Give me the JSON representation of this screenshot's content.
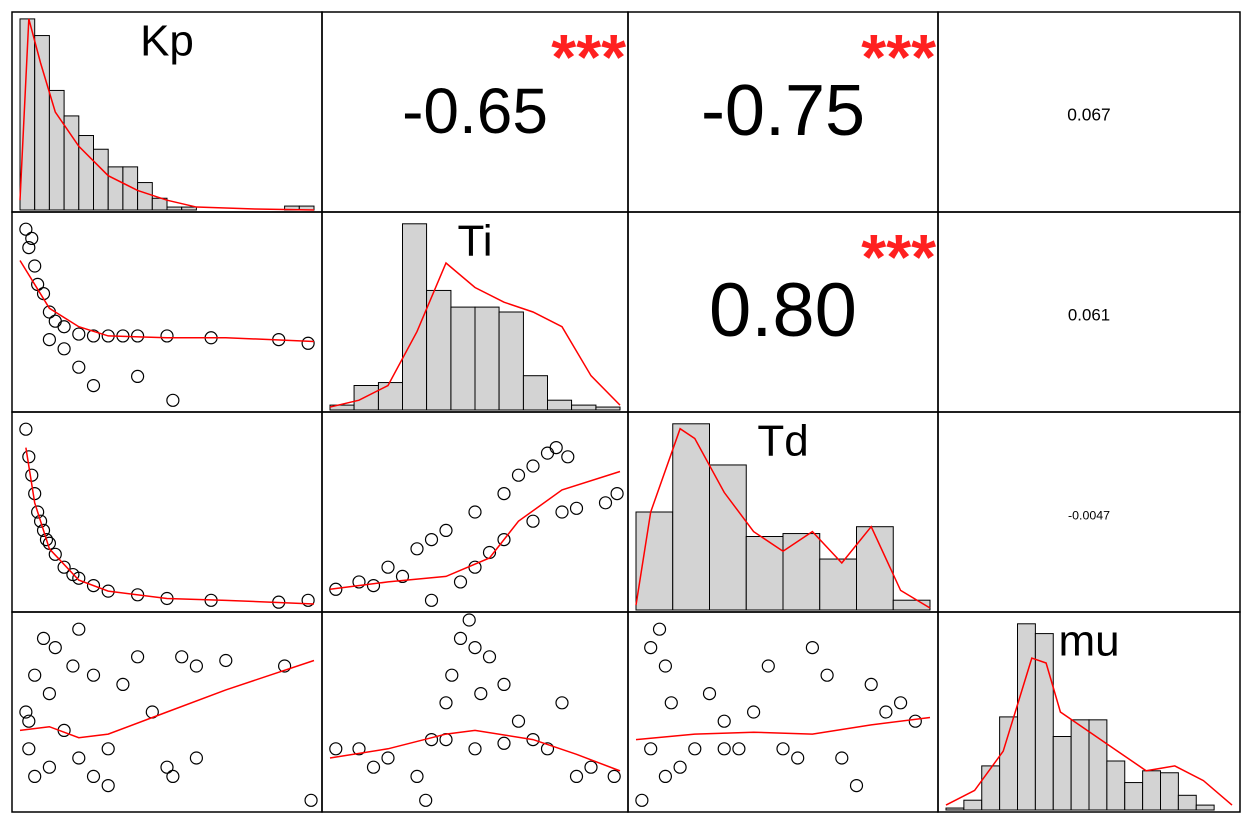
{
  "chart_data": {
    "type": "pairs",
    "variables": [
      "Kp",
      "Ti",
      "Td",
      "mu"
    ],
    "bar_color": "#d3d3d3",
    "line_color": "#ff0000",
    "star_color": "#ff2020",
    "xlim": [
      0,
      1
    ],
    "ylim": [
      0,
      1
    ],
    "hist_ylim": [
      0,
      200
    ],
    "histograms": [
      {
        "bins": [
          0,
          0.05,
          0.1,
          0.15,
          0.2,
          0.25,
          0.3,
          0.35,
          0.4,
          0.45,
          0.5,
          0.55,
          0.6,
          0.65,
          0.7,
          0.75,
          0.8,
          0.85,
          0.9,
          0.95,
          1
        ],
        "counts": [
          195,
          178,
          122,
          96,
          76,
          62,
          44,
          44,
          28,
          12,
          3,
          3,
          0,
          0,
          0,
          0,
          0,
          0,
          4,
          4
        ],
        "density": {
          "x": [
            0,
            0.03,
            0.07,
            0.12,
            0.2,
            0.3,
            0.4,
            0.5,
            0.6,
            0.8,
            1
          ],
          "y": [
            10,
            195,
            150,
            100,
            65,
            35,
            20,
            10,
            3,
            1,
            0
          ]
        }
      },
      {
        "bins": [
          0,
          0.083,
          0.167,
          0.25,
          0.333,
          0.417,
          0.5,
          0.583,
          0.667,
          0.75,
          0.833,
          0.917,
          1
        ],
        "counts": [
          5,
          25,
          28,
          190,
          122,
          105,
          105,
          100,
          35,
          10,
          5,
          3
        ],
        "density": {
          "x": [
            0,
            0.1,
            0.2,
            0.3,
            0.4,
            0.5,
            0.6,
            0.7,
            0.8,
            0.9,
            1
          ],
          "y": [
            3,
            10,
            25,
            80,
            150,
            125,
            110,
            100,
            85,
            35,
            5
          ]
        }
      },
      {
        "bins": [
          0,
          0.125,
          0.25,
          0.375,
          0.5,
          0.625,
          0.75,
          0.875,
          1
        ],
        "counts": [
          100,
          190,
          148,
          75,
          78,
          52,
          85,
          10
        ],
        "density": {
          "x": [
            0,
            0.05,
            0.15,
            0.2,
            0.3,
            0.4,
            0.5,
            0.6,
            0.7,
            0.8,
            0.9,
            1
          ],
          "y": [
            5,
            100,
            185,
            175,
            120,
            80,
            60,
            80,
            48,
            85,
            20,
            2
          ]
        }
      },
      {
        "bins": [
          0,
          0.0625,
          0.125,
          0.1875,
          0.25,
          0.3125,
          0.375,
          0.4375,
          0.5,
          0.5625,
          0.625,
          0.6875,
          0.75,
          0.8125,
          0.875,
          0.9375,
          1
        ],
        "counts": [
          2,
          10,
          45,
          95,
          190,
          180,
          75,
          92,
          92,
          50,
          28,
          40,
          38,
          15,
          5,
          0
        ],
        "density": {
          "x": [
            0,
            0.1,
            0.2,
            0.3,
            0.35,
            0.4,
            0.5,
            0.6,
            0.7,
            0.8,
            0.9,
            1
          ],
          "y": [
            5,
            20,
            60,
            155,
            150,
            100,
            80,
            60,
            40,
            45,
            30,
            5
          ]
        }
      }
    ],
    "correlations": [
      {
        "row": 0,
        "col": 1,
        "value": -0.65,
        "stars": "***"
      },
      {
        "row": 0,
        "col": 2,
        "value": -0.75,
        "stars": "***"
      },
      {
        "row": 0,
        "col": 3,
        "value": 0.067
      },
      {
        "row": 1,
        "col": 2,
        "value": 0.8,
        "value_label": "0.80",
        "stars": "***"
      },
      {
        "row": 1,
        "col": 3,
        "value": 0.061
      },
      {
        "row": 2,
        "col": 3,
        "value": -0.0047
      }
    ],
    "scatter": [
      {
        "row": 1,
        "col": 0,
        "x": [
          0.02,
          0.03,
          0.05,
          0.06,
          0.08,
          0.1,
          0.12,
          0.15,
          0.2,
          0.25,
          0.3,
          0.35,
          0.4,
          0.5,
          0.65,
          0.88,
          0.98,
          0.2,
          0.25,
          0.4,
          0.52,
          0.15,
          0.1,
          0.04
        ],
        "y": [
          0.95,
          0.85,
          0.75,
          0.65,
          0.6,
          0.5,
          0.45,
          0.42,
          0.38,
          0.37,
          0.37,
          0.37,
          0.37,
          0.37,
          0.36,
          0.35,
          0.33,
          0.2,
          0.1,
          0.15,
          0.02,
          0.3,
          0.35,
          0.9
        ],
        "fit": {
          "x": [
            0,
            0.1,
            0.2,
            0.3,
            0.5,
            0.7,
            1
          ],
          "y": [
            0.78,
            0.52,
            0.42,
            0.37,
            0.36,
            0.36,
            0.34
          ]
        }
      },
      {
        "row": 2,
        "col": 0,
        "x": [
          0.02,
          0.03,
          0.04,
          0.05,
          0.06,
          0.08,
          0.1,
          0.12,
          0.15,
          0.2,
          0.25,
          0.3,
          0.4,
          0.5,
          0.65,
          0.88,
          0.98,
          0.07,
          0.09,
          0.18
        ],
        "y": [
          0.95,
          0.8,
          0.7,
          0.6,
          0.5,
          0.4,
          0.33,
          0.27,
          0.2,
          0.14,
          0.1,
          0.07,
          0.05,
          0.03,
          0.02,
          0.01,
          0.02,
          0.45,
          0.35,
          0.16
        ],
        "fit": {
          "x": [
            0.02,
            0.05,
            0.1,
            0.2,
            0.3,
            0.5,
            0.7,
            1
          ],
          "y": [
            0.85,
            0.55,
            0.3,
            0.13,
            0.07,
            0.03,
            0.02,
            0
          ]
        }
      },
      {
        "row": 2,
        "col": 1,
        "x": [
          0.02,
          0.1,
          0.2,
          0.3,
          0.35,
          0.4,
          0.5,
          0.6,
          0.65,
          0.7,
          0.75,
          0.78,
          0.82,
          0.35,
          0.45,
          0.5,
          0.55,
          0.6,
          0.7,
          0.8,
          0.85,
          0.95,
          0.99,
          0.15,
          0.25
        ],
        "y": [
          0.08,
          0.12,
          0.2,
          0.3,
          0.35,
          0.4,
          0.5,
          0.6,
          0.7,
          0.75,
          0.82,
          0.85,
          0.8,
          0.02,
          0.12,
          0.2,
          0.28,
          0.35,
          0.45,
          0.5,
          0.52,
          0.55,
          0.6,
          0.1,
          0.15
        ],
        "fit": {
          "x": [
            0,
            0.2,
            0.4,
            0.55,
            0.65,
            0.8,
            1
          ],
          "y": [
            0.08,
            0.12,
            0.15,
            0.25,
            0.45,
            0.62,
            0.72
          ]
        }
      },
      {
        "row": 3,
        "col": 0,
        "x": [
          0.02,
          0.03,
          0.05,
          0.08,
          0.1,
          0.12,
          0.15,
          0.18,
          0.2,
          0.25,
          0.3,
          0.35,
          0.4,
          0.45,
          0.5,
          0.55,
          0.6,
          0.05,
          0.1,
          0.2,
          0.25,
          0.3,
          0.52,
          0.6,
          0.9,
          0.99,
          0.7,
          0.03
        ],
        "y": [
          0.5,
          0.3,
          0.7,
          0.9,
          0.6,
          0.85,
          0.4,
          0.75,
          0.95,
          0.7,
          0.3,
          0.65,
          0.8,
          0.5,
          0.2,
          0.8,
          0.75,
          0.15,
          0.2,
          0.25,
          0.15,
          0.1,
          0.15,
          0.25,
          0.75,
          0.02,
          0.78,
          0.45
        ],
        "fit": {
          "x": [
            0,
            0.1,
            0.2,
            0.3,
            0.5,
            0.7,
            1
          ],
          "y": [
            0.4,
            0.42,
            0.36,
            0.38,
            0.5,
            0.62,
            0.78
          ]
        }
      },
      {
        "row": 3,
        "col": 1,
        "x": [
          0.02,
          0.1,
          0.15,
          0.2,
          0.3,
          0.35,
          0.4,
          0.42,
          0.45,
          0.48,
          0.5,
          0.52,
          0.55,
          0.6,
          0.65,
          0.7,
          0.75,
          0.8,
          0.85,
          0.9,
          0.98,
          0.33,
          0.5,
          0.6,
          0.4
        ],
        "y": [
          0.3,
          0.3,
          0.2,
          0.25,
          0.15,
          0.35,
          0.55,
          0.7,
          0.9,
          1,
          0.85,
          0.6,
          0.8,
          0.65,
          0.45,
          0.35,
          0.3,
          0.55,
          0.15,
          0.2,
          0.15,
          0.02,
          0.3,
          0.33,
          0.35
        ],
        "fit": {
          "x": [
            0,
            0.2,
            0.4,
            0.5,
            0.7,
            0.85,
            1
          ],
          "y": [
            0.25,
            0.3,
            0.38,
            0.4,
            0.35,
            0.27,
            0.18
          ]
        }
      },
      {
        "row": 3,
        "col": 2,
        "x": [
          0.02,
          0.05,
          0.08,
          0.1,
          0.12,
          0.15,
          0.2,
          0.25,
          0.3,
          0.35,
          0.4,
          0.45,
          0.5,
          0.55,
          0.6,
          0.65,
          0.7,
          0.75,
          0.8,
          0.85,
          0.9,
          0.95,
          0.05,
          0.1,
          0.3
        ],
        "y": [
          0.02,
          0.85,
          0.95,
          0.75,
          0.55,
          0.2,
          0.3,
          0.6,
          0.45,
          0.3,
          0.5,
          0.75,
          0.3,
          0.25,
          0.85,
          0.7,
          0.25,
          0.1,
          0.65,
          0.5,
          0.55,
          0.45,
          0.3,
          0.15,
          0.3
        ],
        "fit": {
          "x": [
            0,
            0.2,
            0.4,
            0.6,
            0.8,
            1
          ],
          "y": [
            0.35,
            0.38,
            0.39,
            0.38,
            0.43,
            0.47
          ]
        }
      }
    ]
  }
}
